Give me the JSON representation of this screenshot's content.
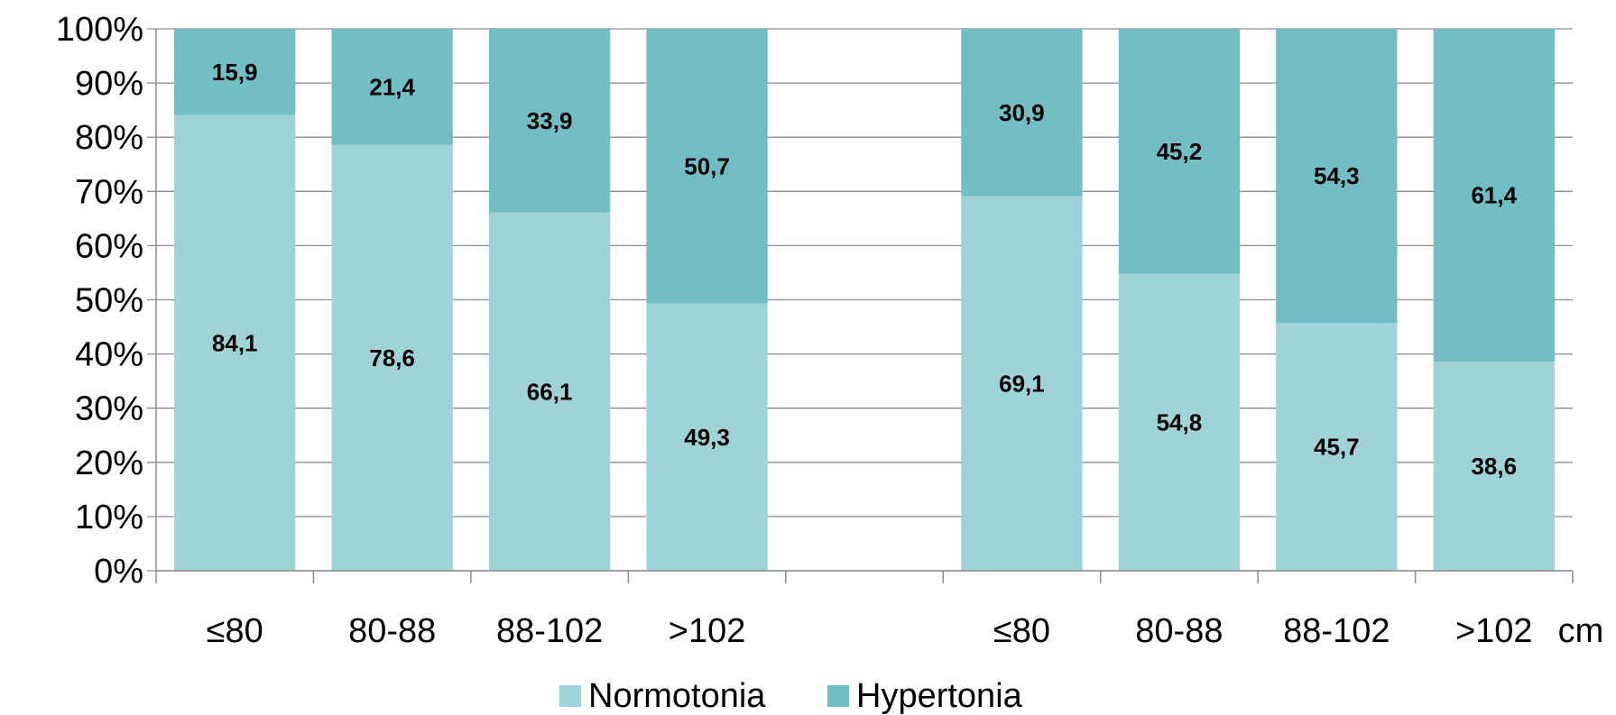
{
  "chart_data": {
    "type": "bar",
    "stacked": true,
    "percent_stacked": true,
    "categories": [
      "≤80",
      "80-88",
      "88-102",
      ">102",
      "",
      "≤80",
      "80-88",
      "88-102",
      ">102"
    ],
    "series": [
      {
        "name": "Normotonia",
        "color": "#a0d3d7",
        "values": [
          84.1,
          78.6,
          66.1,
          49.3,
          null,
          69.1,
          54.8,
          45.7,
          38.6
        ],
        "labels": [
          "84,1",
          "78,6",
          "66,1",
          "49,3",
          "",
          "69,1",
          "54,8",
          "45,7",
          "38,6"
        ]
      },
      {
        "name": "Hypertonia",
        "color": "#72bec4",
        "values": [
          15.9,
          21.4,
          33.9,
          50.7,
          null,
          30.9,
          45.2,
          54.3,
          61.4
        ],
        "labels": [
          "15,9",
          "21,4",
          "33,9",
          "50,7",
          "",
          "30,9",
          "45,2",
          "54,3",
          "61,4"
        ]
      }
    ],
    "y_ticks": [
      "0%",
      "10%",
      "20%",
      "30%",
      "40%",
      "50%",
      "60%",
      "70%",
      "80%",
      "90%",
      "100%"
    ],
    "ylim": [
      0,
      100
    ],
    "x_unit": "cm",
    "grid": true,
    "legend_position": "bottom-center"
  }
}
